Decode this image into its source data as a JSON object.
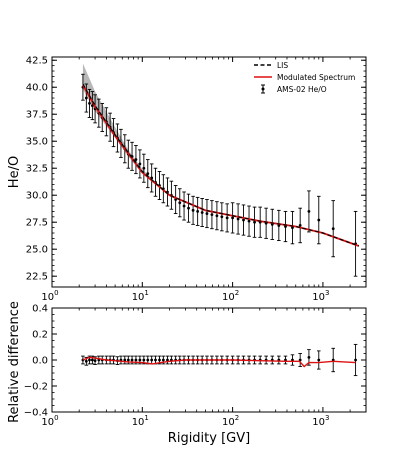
{
  "chart_data": [
    {
      "type": "line",
      "panel": "top",
      "xlabel": "",
      "ylabel": "He/O",
      "xscale": "log",
      "xlim": [
        1,
        3000
      ],
      "ylim": [
        21.5,
        42.8
      ],
      "xticks": [
        {
          "value": 1,
          "base": "10",
          "exp": "0"
        },
        {
          "value": 10,
          "base": "10",
          "exp": "1"
        },
        {
          "value": 100,
          "base": "10",
          "exp": "2"
        },
        {
          "value": 1000,
          "base": "10",
          "exp": "3"
        }
      ],
      "yticks": [
        "22.5",
        "25.0",
        "27.5",
        "30.0",
        "32.5",
        "35.0",
        "37.5",
        "40.0",
        "42.5"
      ],
      "legend": {
        "position": "top-right",
        "entries": [
          "LIS",
          "Modulated Spectrum",
          "AMS-02 He/O"
        ]
      },
      "colors": {
        "lis": "#000000",
        "modulated": "#dd1111",
        "band": "#b8b8b8",
        "data": "#000000"
      },
      "series": [
        {
          "name": "LIS",
          "style": "dashed",
          "x": [
            2.2,
            3,
            5,
            10,
            20,
            50,
            100,
            200,
            500,
            1000,
            2500
          ],
          "y": [
            40.3,
            38.3,
            35.6,
            32.2,
            30.0,
            28.6,
            28.1,
            27.6,
            27.1,
            26.5,
            25.3
          ]
        },
        {
          "name": "Modulated Spectrum",
          "style": "solid",
          "x": [
            2.2,
            3,
            5,
            10,
            20,
            50,
            100,
            200,
            500,
            1000,
            2500
          ],
          "y": [
            40.2,
            38.2,
            35.5,
            32.1,
            30.0,
            28.6,
            28.1,
            27.6,
            27.1,
            26.5,
            25.3
          ]
        },
        {
          "name": "AMS-02 He/O",
          "style": "errorbar",
          "x": [
            2.2,
            2.4,
            2.6,
            2.8,
            3.0,
            3.3,
            3.6,
            4.0,
            4.4,
            4.8,
            5.3,
            5.8,
            6.4,
            7.0,
            7.7,
            8.5,
            9.4,
            10.4,
            11.5,
            12.7,
            14.0,
            15.5,
            17.1,
            19.0,
            21.0,
            23.4,
            26.0,
            29.0,
            32.5,
            36.5,
            41.0,
            46.0,
            52.0,
            59.0,
            67.0,
            76.0,
            87.0,
            100,
            115,
            132,
            152,
            175,
            202,
            235,
            275,
            325,
            385,
            460,
            560,
            700,
            900,
            1300,
            2300
          ],
          "y": [
            40.0,
            39.0,
            38.5,
            38.3,
            38.0,
            37.6,
            37.2,
            36.8,
            36.3,
            35.8,
            35.3,
            34.8,
            34.3,
            33.8,
            33.6,
            33.3,
            32.9,
            32.5,
            32.0,
            31.6,
            31.2,
            30.9,
            30.6,
            30.3,
            30.0,
            29.6,
            29.3,
            29.0,
            28.8,
            28.6,
            28.5,
            28.4,
            28.3,
            28.2,
            28.1,
            28.0,
            27.9,
            27.9,
            27.8,
            27.7,
            27.6,
            27.5,
            27.5,
            27.4,
            27.3,
            27.2,
            27.1,
            27.0,
            27.2,
            28.5,
            27.7,
            26.9,
            25.5
          ],
          "yerr": [
            1.2,
            1.3,
            1.3,
            1.3,
            1.3,
            1.3,
            1.3,
            1.3,
            1.3,
            1.3,
            1.3,
            1.3,
            1.3,
            1.3,
            1.3,
            1.3,
            1.3,
            1.3,
            1.3,
            1.3,
            1.3,
            1.3,
            1.3,
            1.3,
            1.3,
            1.3,
            1.3,
            1.3,
            1.3,
            1.3,
            1.3,
            1.3,
            1.3,
            1.3,
            1.3,
            1.3,
            1.3,
            1.4,
            1.4,
            1.4,
            1.4,
            1.4,
            1.4,
            1.4,
            1.4,
            1.4,
            1.4,
            1.5,
            1.6,
            1.9,
            2.2,
            2.6,
            3.0
          ]
        }
      ],
      "band": {
        "x": [
          2.2,
          3,
          5,
          7,
          10,
          15
        ],
        "y_low": [
          39.8,
          37.8,
          35.3,
          33.6,
          32.0,
          30.8
        ],
        "y_high": [
          42.2,
          39.6,
          36.3,
          34.2,
          32.4,
          31.0
        ]
      }
    },
    {
      "type": "line",
      "panel": "bottom",
      "xlabel": "Rigidity [GV]",
      "ylabel": "Relative difference",
      "xscale": "log",
      "xlim": [
        1,
        3000
      ],
      "ylim": [
        -0.4,
        0.4
      ],
      "xticks": [
        {
          "value": 1,
          "base": "10",
          "exp": "0"
        },
        {
          "value": 10,
          "base": "10",
          "exp": "1"
        },
        {
          "value": 100,
          "base": "10",
          "exp": "2"
        },
        {
          "value": 1000,
          "base": "10",
          "exp": "3"
        }
      ],
      "yticks": [
        "−0.4",
        "−0.2",
        "0.0",
        "0.2",
        "0.4"
      ],
      "series": [
        {
          "name": "",
          "style": "solid-red",
          "x": [
            2.2,
            2.6,
            3,
            4,
            5,
            7,
            10,
            13,
            16,
            20,
            30,
            50,
            100,
            200,
            400,
            550,
            620,
            700,
            900,
            1300,
            2300
          ],
          "y": [
            0.0,
            0.02,
            0.015,
            0.0,
            -0.005,
            -0.015,
            -0.02,
            -0.03,
            -0.02,
            -0.01,
            0.0,
            0.0,
            0.0,
            -0.005,
            -0.01,
            -0.01,
            -0.05,
            -0.02,
            -0.02,
            -0.01,
            -0.02
          ]
        },
        {
          "name": "",
          "style": "errorbar",
          "x": [
            2.2,
            2.4,
            2.6,
            2.8,
            3.0,
            3.3,
            3.6,
            4.0,
            4.4,
            4.8,
            5.3,
            5.8,
            6.4,
            7.0,
            7.7,
            8.5,
            9.4,
            10.4,
            11.5,
            12.7,
            14.0,
            15.5,
            17.1,
            19.0,
            21.0,
            23.4,
            26.0,
            29.0,
            32.5,
            36.5,
            41.0,
            46.0,
            52.0,
            59.0,
            67.0,
            76.0,
            87.0,
            100,
            115,
            132,
            152,
            175,
            202,
            235,
            275,
            325,
            385,
            460,
            560,
            700,
            900,
            1300,
            2300
          ],
          "y": [
            0.0,
            -0.01,
            0.0,
            0.0,
            -0.005,
            0.0,
            0.0,
            0.0,
            0.0,
            0.0,
            -0.005,
            0.0,
            0.0,
            0.0,
            0.0,
            0.0,
            0.0,
            0.0,
            0.0,
            0.0,
            0.0,
            0.0,
            0.0,
            0.0,
            0.0,
            0.0,
            0.0,
            0.0,
            0.0,
            0.0,
            0.0,
            0.0,
            0.0,
            0.0,
            0.0,
            0.0,
            0.0,
            0.0,
            0.0,
            0.0,
            0.0,
            0.0,
            0.0,
            0.0,
            0.0,
            0.0,
            0.0,
            0.0,
            0.0,
            0.02,
            0.0,
            0.0,
            0.0
          ],
          "yerr": [
            0.03,
            0.03,
            0.03,
            0.03,
            0.03,
            0.03,
            0.03,
            0.03,
            0.03,
            0.03,
            0.03,
            0.03,
            0.03,
            0.03,
            0.03,
            0.03,
            0.03,
            0.03,
            0.03,
            0.03,
            0.03,
            0.03,
            0.03,
            0.03,
            0.03,
            0.03,
            0.03,
            0.03,
            0.03,
            0.03,
            0.03,
            0.03,
            0.03,
            0.03,
            0.03,
            0.03,
            0.03,
            0.03,
            0.03,
            0.03,
            0.03,
            0.03,
            0.03,
            0.03,
            0.03,
            0.03,
            0.03,
            0.04,
            0.05,
            0.06,
            0.07,
            0.09,
            0.12
          ]
        }
      ]
    }
  ]
}
